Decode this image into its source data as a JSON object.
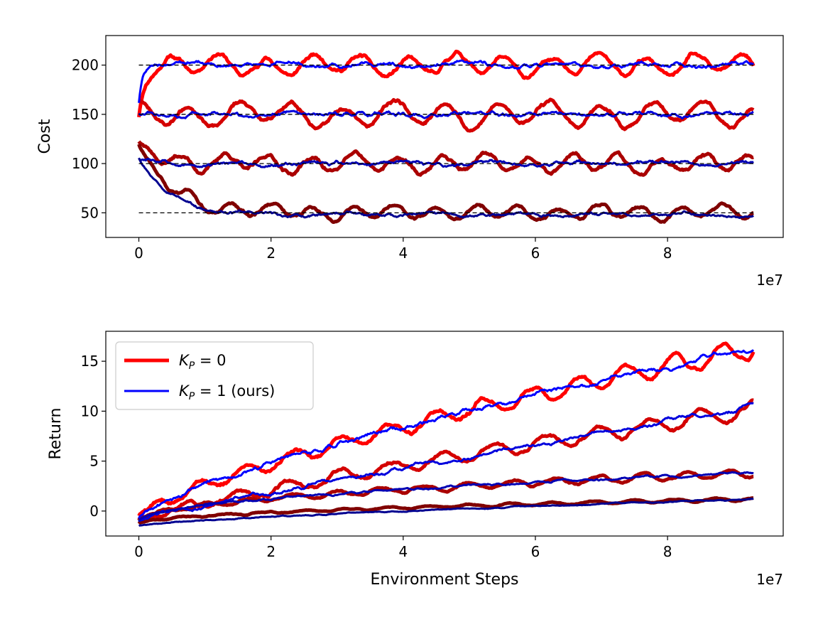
{
  "chart_data": [
    {
      "type": "line",
      "xlabel": "",
      "ylabel": "Cost",
      "x_multiplier": "1e7",
      "x_range": [
        0,
        9.3
      ],
      "xlim": [
        -0.5,
        9.75
      ],
      "ylim": [
        25,
        230
      ],
      "xticks": [
        0,
        2,
        4,
        6,
        8
      ],
      "yticks": [
        50,
        100,
        150,
        200
      ],
      "reference_lines": [
        50,
        100,
        150,
        200
      ],
      "reference_line_style": "dashed",
      "series": [
        {
          "color": "#ff0000",
          "width": 5,
          "start": 150,
          "target": 200,
          "transient": 0.1,
          "amp": 9,
          "period": 0.72,
          "noise": 2.5,
          "seed": 11
        },
        {
          "color": "#d40000",
          "width": 5,
          "start": 165,
          "target": 150,
          "transient": 0.15,
          "amp": 11,
          "period": 0.78,
          "noise": 2.5,
          "seed": 23
        },
        {
          "color": "#aa0000",
          "width": 5,
          "start": 125,
          "target": 100,
          "transient": 0.3,
          "amp": 8,
          "period": 0.66,
          "noise": 2.5,
          "seed": 37
        },
        {
          "color": "#800000",
          "width": 5,
          "start": 120,
          "target": 50,
          "transient": 0.5,
          "amp": 6,
          "period": 0.62,
          "noise": 2,
          "seed": 49
        },
        {
          "color": "#0000ff",
          "width": 3,
          "start": 160,
          "target": 200,
          "transient": 0.05,
          "amp": 1.5,
          "period": 1.4,
          "noise": 2.5,
          "seed": 61
        },
        {
          "color": "#0000dd",
          "width": 3,
          "start": 150,
          "target": 150,
          "transient": 0.1,
          "amp": 1.5,
          "period": 1.3,
          "noise": 2.5,
          "seed": 73
        },
        {
          "color": "#0000b4",
          "width": 3,
          "start": 105,
          "target": 100,
          "transient": 0.2,
          "amp": 1.5,
          "period": 1.3,
          "noise": 2.2,
          "seed": 85
        },
        {
          "color": "#000090",
          "width": 3,
          "start": 108,
          "target": 48,
          "transient": 0.45,
          "amp": 1.5,
          "period": 1.3,
          "noise": 1.8,
          "seed": 97
        }
      ]
    },
    {
      "type": "line",
      "xlabel": "Environment Steps",
      "ylabel": "Return",
      "x_multiplier": "1e7",
      "x_range": [
        0,
        9.3
      ],
      "xlim": [
        -0.5,
        9.75
      ],
      "ylim": [
        -2.5,
        18
      ],
      "xticks": [
        0,
        2,
        4,
        6,
        8
      ],
      "yticks": [
        0,
        5,
        10,
        15
      ],
      "legend_position": "top-left",
      "legend": [
        {
          "label_main": "K",
          "label_sub": "P",
          "label_rest": " = 0",
          "color": "#ff0000"
        },
        {
          "label_main": "K",
          "label_sub": "P",
          "label_rest": " = 1 (ours)",
          "color": "#0000ff"
        }
      ],
      "series": [
        {
          "color": "#ff0000",
          "width": 5,
          "end": 16.3,
          "power": 0.75,
          "start": -0.5,
          "amp": 1.0,
          "period": 0.72,
          "noise": 0.25,
          "seed": 5
        },
        {
          "color": "#d40000",
          "width": 5,
          "end": 10.1,
          "power": 0.85,
          "start": -0.8,
          "amp": 0.8,
          "period": 0.78,
          "noise": 0.2,
          "seed": 17
        },
        {
          "color": "#aa0000",
          "width": 5,
          "end": 3.8,
          "power": 0.5,
          "start": -1.0,
          "amp": 0.4,
          "period": 0.66,
          "noise": 0.12,
          "seed": 29
        },
        {
          "color": "#800000",
          "width": 5,
          "end": 1.2,
          "power": 0.5,
          "start": -1.3,
          "amp": 0.15,
          "period": 0.62,
          "noise": 0.06,
          "seed": 41
        },
        {
          "color": "#0000ff",
          "width": 3,
          "end": 16.3,
          "power": 0.75,
          "start": -0.5,
          "amp": 0.2,
          "period": 1.3,
          "noise": 0.25,
          "seed": 53
        },
        {
          "color": "#0000dd",
          "width": 3,
          "end": 10.5,
          "power": 0.95,
          "start": -0.8,
          "amp": 0.2,
          "period": 1.3,
          "noise": 0.2,
          "seed": 65
        },
        {
          "color": "#0000b4",
          "width": 3,
          "end": 3.8,
          "power": 0.5,
          "start": -1.0,
          "amp": 0.1,
          "period": 1.3,
          "noise": 0.12,
          "seed": 77
        },
        {
          "color": "#000090",
          "width": 3,
          "end": 1.2,
          "power": 0.7,
          "start": -1.5,
          "amp": 0.05,
          "period": 1.3,
          "noise": 0.06,
          "seed": 89
        }
      ]
    }
  ]
}
